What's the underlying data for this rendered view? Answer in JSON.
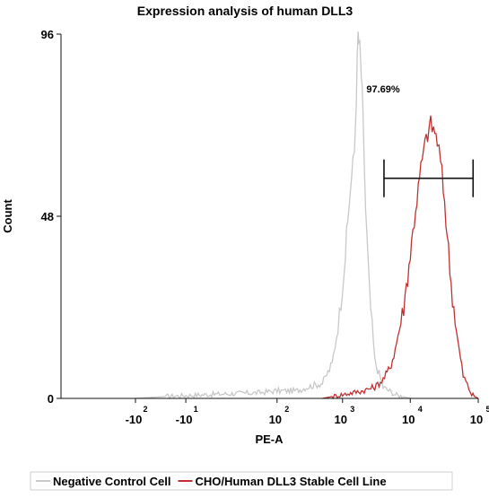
{
  "chart_data": {
    "type": "area",
    "title": "Expression analysis of human DLL3",
    "xlabel": "PE-A",
    "ylabel": "Count",
    "x_scale": "biexponential",
    "xlim": [
      -1000,
      100000
    ],
    "ylim": [
      0,
      96
    ],
    "yticks": [
      0,
      48,
      96
    ],
    "xticks": [
      {
        "value": -100,
        "base": "-10",
        "exp": "2"
      },
      {
        "value": -10,
        "base": "-10",
        "exp": "1"
      },
      {
        "value": 100,
        "base": "10",
        "exp": "2"
      },
      {
        "value": 1000,
        "base": "10",
        "exp": "3"
      },
      {
        "value": 10000,
        "base": "10",
        "exp": "4"
      },
      {
        "value": 100000,
        "base": "10",
        "exp": "5"
      }
    ],
    "series": [
      {
        "name": "Negative Control Cell",
        "color": "#c8c8c8",
        "x": [
          -100,
          -30,
          0,
          50,
          100,
          200,
          300,
          500,
          700,
          900,
          1100,
          1300,
          1500,
          1600,
          1700,
          1800,
          1900,
          2000,
          2200,
          2500,
          3000,
          4000,
          6000,
          10000
        ],
        "y": [
          0,
          0.5,
          1,
          1.5,
          2,
          2,
          3,
          4,
          9,
          22,
          38,
          55,
          65,
          80,
          96,
          92,
          85,
          75,
          50,
          28,
          10,
          3,
          1,
          0
        ]
      },
      {
        "name": "CHO/Human DLL3 Stable Cell Line",
        "color": "#c03030",
        "x": [
          500,
          1000,
          2000,
          3000,
          4000,
          5000,
          6000,
          8000,
          10000,
          12000,
          15000,
          18000,
          20000,
          22000,
          25000,
          28000,
          32000,
          40000,
          50000,
          60000,
          80000,
          100000
        ],
        "y": [
          0,
          1,
          2,
          3,
          5,
          8,
          13,
          24,
          38,
          50,
          63,
          70,
          72,
          71,
          68,
          62,
          52,
          30,
          15,
          6,
          1,
          0
        ]
      }
    ],
    "gate": {
      "x_start": 4100,
      "x_end": 84000,
      "y": 58,
      "label": "97.69%"
    },
    "legend": {
      "position": "bottom"
    }
  }
}
